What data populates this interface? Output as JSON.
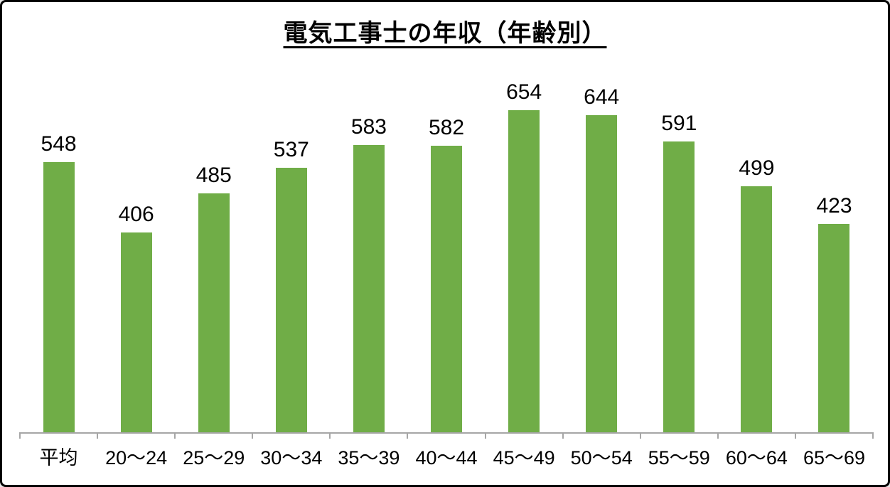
{
  "page": {
    "background": "#ffffff",
    "frame_border_color": "#000000"
  },
  "chart_data": {
    "type": "bar",
    "title": "電気工事士の年収（年齢別）",
    "title_underlined": true,
    "categories": [
      "平均",
      "20〜24",
      "25〜29",
      "30〜34",
      "35〜39",
      "40〜44",
      "45〜49",
      "50〜54",
      "55〜59",
      "60〜64",
      "65〜69"
    ],
    "values": [
      548,
      406,
      485,
      537,
      583,
      582,
      654,
      644,
      591,
      499,
      423
    ],
    "data_labels_shown": true,
    "xlabel": "",
    "ylabel": "",
    "y_axis_shown": false,
    "grid": false,
    "legend": false,
    "ylim": [
      0,
      660
    ],
    "bar_color": "#70ad47",
    "axis_color": "#a6a6a6",
    "label_color": "#000000"
  }
}
